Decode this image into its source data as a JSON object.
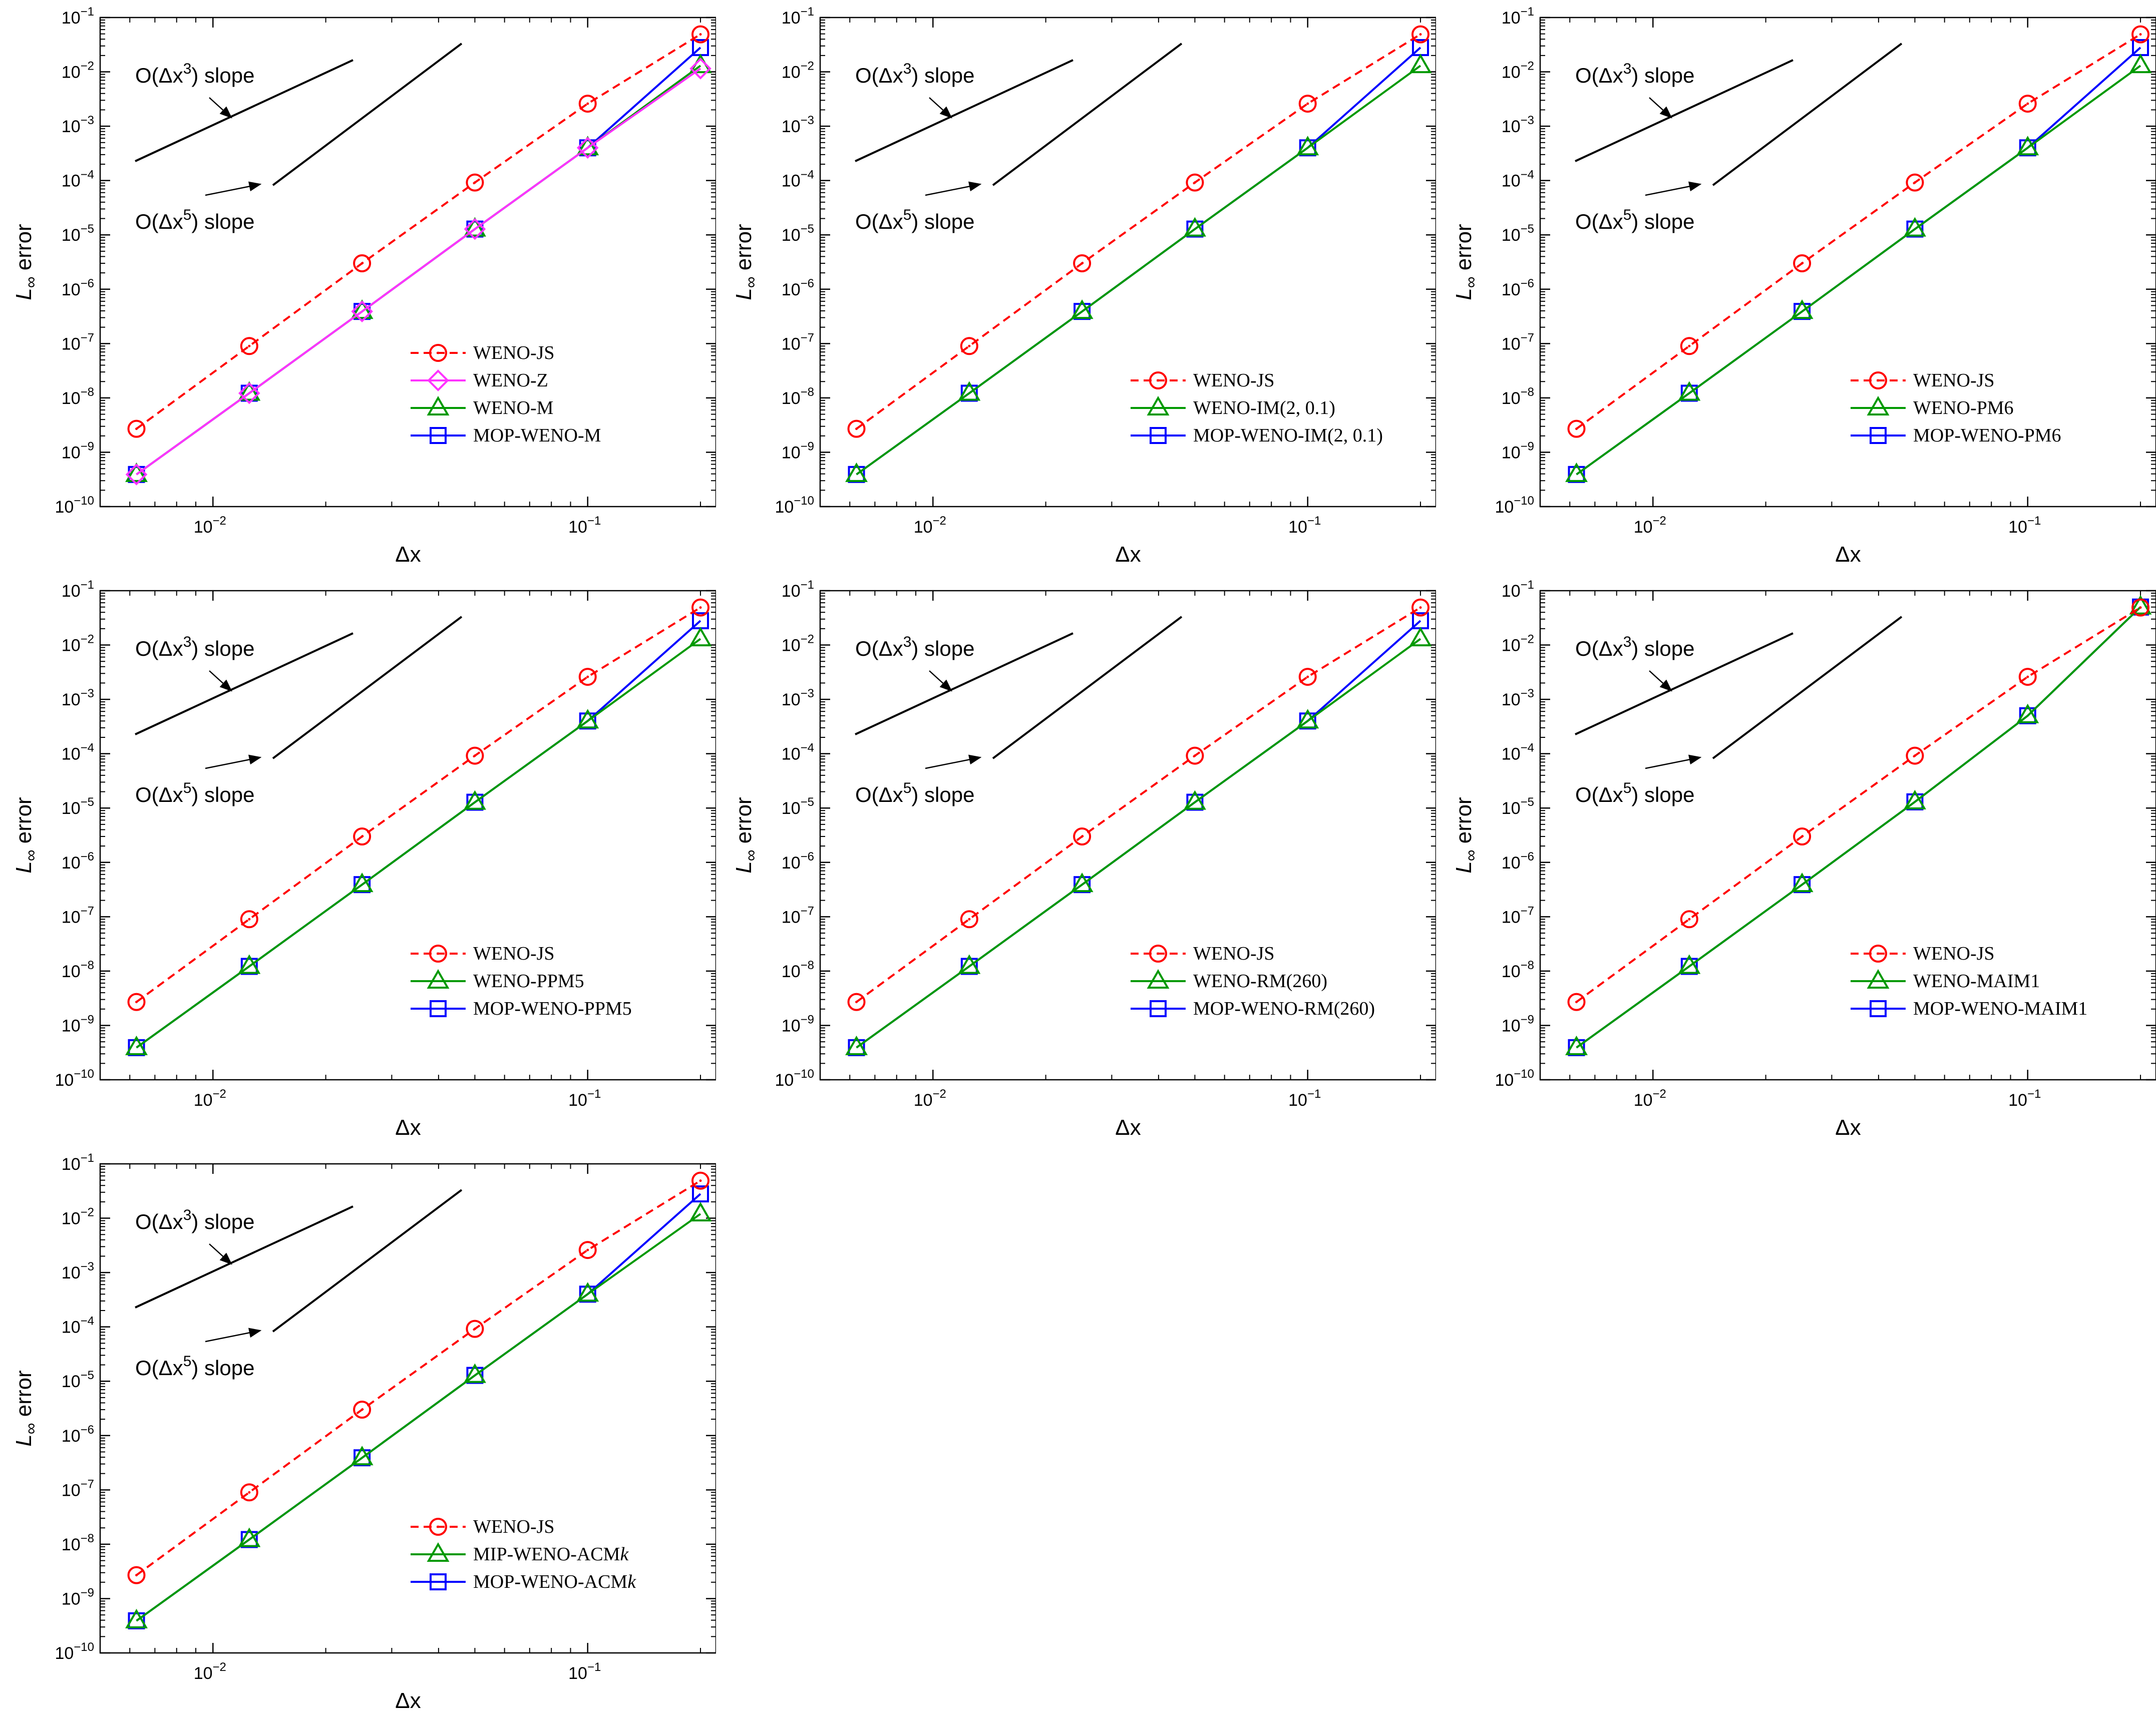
{
  "chart_data": [
    {
      "type": "line",
      "xscale": "log",
      "yscale": "log",
      "xlim": [
        0.005,
        0.22
      ],
      "ylim": [
        1e-10,
        0.1
      ],
      "xlabel": "Δx",
      "ylabel": "L∞ error",
      "xticks": [
        0.01,
        0.1
      ],
      "yticks": [
        1e-10,
        1e-09,
        1e-08,
        1e-07,
        1e-06,
        1e-05,
        0.0001,
        0.001,
        0.01,
        0.1
      ],
      "legend_position": "lower-right",
      "annotations": [
        {
          "text": "O(Δx3) slope"
        },
        {
          "text": "O(Δx5) slope"
        }
      ],
      "series": [
        {
          "name": "WENO-JS",
          "color": "#ff0000",
          "marker": "circle",
          "dash": true,
          "x": [
            0.00625,
            0.0125,
            0.025,
            0.05,
            0.1,
            0.2
          ],
          "y": [
            2.7e-09,
            9e-08,
            3e-06,
            9.2e-05,
            0.0026,
            0.049
          ]
        },
        {
          "name": "WENO-Z",
          "color": "#ff33ff",
          "marker": "diamond",
          "dash": false,
          "x": [
            0.00625,
            0.0125,
            0.025,
            0.05,
            0.1,
            0.2
          ],
          "y": [
            3.9e-10,
            1.22e-08,
            3.9e-07,
            1.28e-05,
            0.0004,
            0.0115
          ]
        },
        {
          "name": "WENO-M",
          "color": "#009900",
          "marker": "triangle",
          "dash": false,
          "x": [
            0.00625,
            0.0125,
            0.025,
            0.05,
            0.1,
            0.2
          ],
          "y": [
            3.9e-10,
            1.22e-08,
            3.9e-07,
            1.28e-05,
            0.0004,
            0.013
          ]
        },
        {
          "name": "MOP-WENO-M",
          "color": "#0000ff",
          "marker": "square",
          "dash": false,
          "x": [
            0.00625,
            0.0125,
            0.025,
            0.05,
            0.1,
            0.2
          ],
          "y": [
            3.9e-10,
            1.22e-08,
            3.9e-07,
            1.28e-05,
            0.0004,
            0.028
          ]
        }
      ]
    },
    {
      "type": "line",
      "xscale": "log",
      "yscale": "log",
      "xlim": [
        0.005,
        0.22
      ],
      "ylim": [
        1e-10,
        0.1
      ],
      "xlabel": "Δx",
      "ylabel": "L∞ error",
      "xticks": [
        0.01,
        0.1
      ],
      "yticks": [
        1e-10,
        1e-09,
        1e-08,
        1e-07,
        1e-06,
        1e-05,
        0.0001,
        0.001,
        0.01,
        0.1
      ],
      "legend_position": "lower-right",
      "annotations": [
        {
          "text": "O(Δx3) slope"
        },
        {
          "text": "O(Δx5) slope"
        }
      ],
      "series": [
        {
          "name": "WENO-JS",
          "color": "#ff0000",
          "marker": "circle",
          "dash": true,
          "x": [
            0.00625,
            0.0125,
            0.025,
            0.05,
            0.1,
            0.2
          ],
          "y": [
            2.7e-09,
            9e-08,
            3e-06,
            9.2e-05,
            0.0026,
            0.049
          ]
        },
        {
          "name": "WENO-IM(2, 0.1)",
          "color": "#009900",
          "marker": "triangle",
          "dash": false,
          "x": [
            0.00625,
            0.0125,
            0.025,
            0.05,
            0.1,
            0.2
          ],
          "y": [
            3.9e-10,
            1.22e-08,
            3.9e-07,
            1.28e-05,
            0.0004,
            0.013
          ]
        },
        {
          "name": "MOP-WENO-IM(2, 0.1)",
          "color": "#0000ff",
          "marker": "square",
          "dash": false,
          "x": [
            0.00625,
            0.0125,
            0.025,
            0.05,
            0.1,
            0.2
          ],
          "y": [
            3.9e-10,
            1.22e-08,
            3.9e-07,
            1.28e-05,
            0.0004,
            0.028
          ]
        }
      ]
    },
    {
      "type": "line",
      "xscale": "log",
      "yscale": "log",
      "xlim": [
        0.005,
        0.22
      ],
      "ylim": [
        1e-10,
        0.1
      ],
      "xlabel": "Δx",
      "ylabel": "L∞ error",
      "xticks": [
        0.01,
        0.1
      ],
      "yticks": [
        1e-10,
        1e-09,
        1e-08,
        1e-07,
        1e-06,
        1e-05,
        0.0001,
        0.001,
        0.01,
        0.1
      ],
      "legend_position": "lower-right",
      "annotations": [
        {
          "text": "O(Δx3) slope"
        },
        {
          "text": "O(Δx5) slope"
        }
      ],
      "series": [
        {
          "name": "WENO-JS",
          "color": "#ff0000",
          "marker": "circle",
          "dash": true,
          "x": [
            0.00625,
            0.0125,
            0.025,
            0.05,
            0.1,
            0.2
          ],
          "y": [
            2.7e-09,
            9e-08,
            3e-06,
            9.2e-05,
            0.0026,
            0.049
          ]
        },
        {
          "name": "WENO-PM6",
          "color": "#009900",
          "marker": "triangle",
          "dash": false,
          "x": [
            0.00625,
            0.0125,
            0.025,
            0.05,
            0.1,
            0.2
          ],
          "y": [
            3.9e-10,
            1.22e-08,
            3.9e-07,
            1.28e-05,
            0.0004,
            0.013
          ]
        },
        {
          "name": "MOP-WENO-PM6",
          "color": "#0000ff",
          "marker": "square",
          "dash": false,
          "x": [
            0.00625,
            0.0125,
            0.025,
            0.05,
            0.1,
            0.2
          ],
          "y": [
            3.9e-10,
            1.22e-08,
            3.9e-07,
            1.28e-05,
            0.0004,
            0.028
          ]
        }
      ]
    },
    {
      "type": "line",
      "xscale": "log",
      "yscale": "log",
      "xlim": [
        0.005,
        0.22
      ],
      "ylim": [
        1e-10,
        0.1
      ],
      "xlabel": "Δx",
      "ylabel": "L∞ error",
      "xticks": [
        0.01,
        0.1
      ],
      "yticks": [
        1e-10,
        1e-09,
        1e-08,
        1e-07,
        1e-06,
        1e-05,
        0.0001,
        0.001,
        0.01,
        0.1
      ],
      "legend_position": "lower-right",
      "annotations": [
        {
          "text": "O(Δx3) slope"
        },
        {
          "text": "O(Δx5) slope"
        }
      ],
      "series": [
        {
          "name": "WENO-JS",
          "color": "#ff0000",
          "marker": "circle",
          "dash": true,
          "x": [
            0.00625,
            0.0125,
            0.025,
            0.05,
            0.1,
            0.2
          ],
          "y": [
            2.7e-09,
            9e-08,
            3e-06,
            9.2e-05,
            0.0026,
            0.049
          ]
        },
        {
          "name": "WENO-PPM5",
          "color": "#009900",
          "marker": "triangle",
          "dash": false,
          "x": [
            0.00625,
            0.0125,
            0.025,
            0.05,
            0.1,
            0.2
          ],
          "y": [
            3.9e-10,
            1.22e-08,
            3.9e-07,
            1.28e-05,
            0.0004,
            0.013
          ]
        },
        {
          "name": "MOP-WENO-PPM5",
          "color": "#0000ff",
          "marker": "square",
          "dash": false,
          "x": [
            0.00625,
            0.0125,
            0.025,
            0.05,
            0.1,
            0.2
          ],
          "y": [
            3.9e-10,
            1.22e-08,
            3.9e-07,
            1.28e-05,
            0.0004,
            0.028
          ]
        }
      ]
    },
    {
      "type": "line",
      "xscale": "log",
      "yscale": "log",
      "xlim": [
        0.005,
        0.22
      ],
      "ylim": [
        1e-10,
        0.1
      ],
      "xlabel": "Δx",
      "ylabel": "L∞ error",
      "xticks": [
        0.01,
        0.1
      ],
      "yticks": [
        1e-10,
        1e-09,
        1e-08,
        1e-07,
        1e-06,
        1e-05,
        0.0001,
        0.001,
        0.01,
        0.1
      ],
      "legend_position": "lower-right",
      "annotations": [
        {
          "text": "O(Δx3) slope"
        },
        {
          "text": "O(Δx5) slope"
        }
      ],
      "series": [
        {
          "name": "WENO-JS",
          "color": "#ff0000",
          "marker": "circle",
          "dash": true,
          "x": [
            0.00625,
            0.0125,
            0.025,
            0.05,
            0.1,
            0.2
          ],
          "y": [
            2.7e-09,
            9e-08,
            3e-06,
            9.2e-05,
            0.0026,
            0.049
          ]
        },
        {
          "name": "WENO-RM(260)",
          "color": "#009900",
          "marker": "triangle",
          "dash": false,
          "x": [
            0.00625,
            0.0125,
            0.025,
            0.05,
            0.1,
            0.2
          ],
          "y": [
            3.9e-10,
            1.22e-08,
            3.9e-07,
            1.28e-05,
            0.0004,
            0.013
          ]
        },
        {
          "name": "MOP-WENO-RM(260)",
          "color": "#0000ff",
          "marker": "square",
          "dash": false,
          "x": [
            0.00625,
            0.0125,
            0.025,
            0.05,
            0.1,
            0.2
          ],
          "y": [
            3.9e-10,
            1.22e-08,
            3.9e-07,
            1.28e-05,
            0.0004,
            0.028
          ]
        }
      ]
    },
    {
      "type": "line",
      "xscale": "log",
      "yscale": "log",
      "xlim": [
        0.005,
        0.22
      ],
      "ylim": [
        1e-10,
        0.1
      ],
      "xlabel": "Δx",
      "ylabel": "L∞ error",
      "xticks": [
        0.01,
        0.1
      ],
      "yticks": [
        1e-10,
        1e-09,
        1e-08,
        1e-07,
        1e-06,
        1e-05,
        0.0001,
        0.001,
        0.01,
        0.1
      ],
      "legend_position": "lower-right",
      "annotations": [
        {
          "text": "O(Δx3) slope"
        },
        {
          "text": "O(Δx5) slope"
        }
      ],
      "series": [
        {
          "name": "WENO-JS",
          "color": "#ff0000",
          "marker": "circle",
          "dash": true,
          "x": [
            0.00625,
            0.0125,
            0.025,
            0.05,
            0.1,
            0.2
          ],
          "y": [
            2.7e-09,
            9e-08,
            3e-06,
            9.2e-05,
            0.0026,
            0.049
          ]
        },
        {
          "name": "WENO-MAIM1",
          "color": "#009900",
          "marker": "triangle",
          "dash": false,
          "x": [
            0.00625,
            0.0125,
            0.025,
            0.05,
            0.1,
            0.2
          ],
          "y": [
            3.9e-10,
            1.22e-08,
            3.9e-07,
            1.3e-05,
            0.0005,
            0.05
          ]
        },
        {
          "name": "MOP-WENO-MAIM1",
          "color": "#0000ff",
          "marker": "square",
          "dash": false,
          "x": [
            0.00625,
            0.0125,
            0.025,
            0.05,
            0.1,
            0.2
          ],
          "y": [
            3.9e-10,
            1.22e-08,
            3.9e-07,
            1.3e-05,
            0.0005,
            0.05
          ]
        }
      ]
    },
    {
      "type": "line",
      "xscale": "log",
      "yscale": "log",
      "xlim": [
        0.005,
        0.22
      ],
      "ylim": [
        1e-10,
        0.1
      ],
      "xlabel": "Δx",
      "ylabel": "L∞ error",
      "xticks": [
        0.01,
        0.1
      ],
      "yticks": [
        1e-10,
        1e-09,
        1e-08,
        1e-07,
        1e-06,
        1e-05,
        0.0001,
        0.001,
        0.01,
        0.1
      ],
      "legend_position": "lower-right",
      "annotations": [
        {
          "text": "O(Δx3) slope"
        },
        {
          "text": "O(Δx5) slope"
        }
      ],
      "series": [
        {
          "name": "WENO-JS",
          "color": "#ff0000",
          "marker": "circle",
          "dash": true,
          "x": [
            0.00625,
            0.0125,
            0.025,
            0.05,
            0.1,
            0.2
          ],
          "y": [
            2.7e-09,
            9e-08,
            3e-06,
            9.2e-05,
            0.0026,
            0.049
          ]
        },
        {
          "name": "MIP-WENO-ACMk",
          "color": "#009900",
          "marker": "triangle",
          "dash": false,
          "x": [
            0.00625,
            0.0125,
            0.025,
            0.05,
            0.1,
            0.2
          ],
          "y": [
            3.9e-10,
            1.22e-08,
            3.9e-07,
            1.28e-05,
            0.0004,
            0.012
          ]
        },
        {
          "name": "MOP-WENO-ACMk",
          "color": "#0000ff",
          "marker": "square",
          "dash": false,
          "x": [
            0.00625,
            0.0125,
            0.025,
            0.05,
            0.1,
            0.2
          ],
          "y": [
            3.9e-10,
            1.22e-08,
            3.9e-07,
            1.28e-05,
            0.0004,
            0.028
          ]
        }
      ]
    }
  ]
}
